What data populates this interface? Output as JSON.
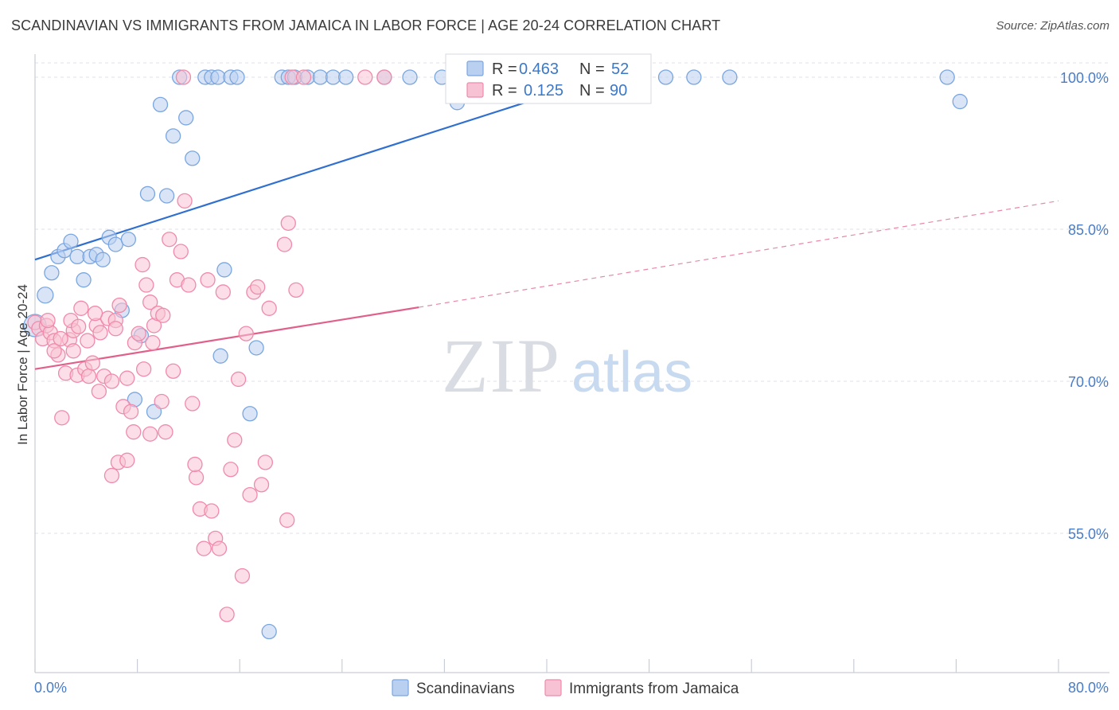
{
  "title": "SCANDINAVIAN VS IMMIGRANTS FROM JAMAICA IN LABOR FORCE | AGE 20-24 CORRELATION CHART",
  "source": "Source: ZipAtlas.com",
  "watermark": {
    "zip": "ZIP",
    "atlas": "atlas"
  },
  "colors": {
    "blue": "#7aa6e0",
    "blue_fill": "#b9d0f0",
    "blue_line": "#2f6fcf",
    "pink": "#f08aab",
    "pink_fill": "#f7c3d4",
    "pink_line": "#e0608a",
    "tick_text": "#4a7cc6",
    "grid": "#dde2ea"
  },
  "legend": {
    "rows": [
      {
        "r_label": "R =",
        "r_value": "0.463",
        "n_label": "N =",
        "n_value": "52"
      },
      {
        "r_label": "R =",
        "r_value": "0.125",
        "n_label": "N =",
        "n_value": "90"
      }
    ]
  },
  "bottom_legend": [
    "Scandinavians",
    "Immigrants from Jamaica"
  ],
  "chart_data": {
    "type": "scatter",
    "title": "SCANDINAVIAN VS IMMIGRANTS FROM JAMAICA IN LABOR FORCE | AGE 20-24 CORRELATION CHART",
    "xlabel": "",
    "ylabel": "In Labor Force | Age 20-24",
    "xlim": [
      0,
      80
    ],
    "ylim": [
      41,
      102
    ],
    "x_tick_labels": [
      "0.0%",
      "80.0%"
    ],
    "y_ticks": [
      55,
      70,
      85,
      100
    ],
    "y_tick_labels": [
      "55.0%",
      "70.0%",
      "85.0%",
      "100.0%"
    ],
    "series": [
      {
        "name": "Scandinavians",
        "color": "blue",
        "R": 0.463,
        "N": 52,
        "trend": {
          "x": [
            0,
            44.5
          ],
          "y": [
            82.0,
            100.0
          ],
          "dashed_extension": false
        },
        "points": [
          [
            0.0,
            75.5
          ],
          [
            0.8,
            78.5
          ],
          [
            1.3,
            80.7
          ],
          [
            1.8,
            82.3
          ],
          [
            2.3,
            82.9
          ],
          [
            2.8,
            83.8
          ],
          [
            3.3,
            82.3
          ],
          [
            3.8,
            80.0
          ],
          [
            4.3,
            82.3
          ],
          [
            4.8,
            82.5
          ],
          [
            5.3,
            82.0
          ],
          [
            5.8,
            84.2
          ],
          [
            6.3,
            83.5
          ],
          [
            6.8,
            77.0
          ],
          [
            7.3,
            84.0
          ],
          [
            7.8,
            68.2
          ],
          [
            8.3,
            74.5
          ],
          [
            8.8,
            88.5
          ],
          [
            9.3,
            67.0
          ],
          [
            9.8,
            97.3
          ],
          [
            10.3,
            88.3
          ],
          [
            10.8,
            94.2
          ],
          [
            11.8,
            96.0
          ],
          [
            12.3,
            92.0
          ],
          [
            11.3,
            100.0
          ],
          [
            13.3,
            100.0
          ],
          [
            13.8,
            100.0
          ],
          [
            14.3,
            100.0
          ],
          [
            15.3,
            100.0
          ],
          [
            15.8,
            100.0
          ],
          [
            19.3,
            100.0
          ],
          [
            19.8,
            100.0
          ],
          [
            20.3,
            100.0
          ],
          [
            21.3,
            100.0
          ],
          [
            22.3,
            100.0
          ],
          [
            23.3,
            100.0
          ],
          [
            24.3,
            100.0
          ],
          [
            27.3,
            100.0
          ],
          [
            29.3,
            100.0
          ],
          [
            31.8,
            100.0
          ],
          [
            33.0,
            97.5
          ],
          [
            35.3,
            100.0
          ],
          [
            49.3,
            100.0
          ],
          [
            51.5,
            100.0
          ],
          [
            54.3,
            100.0
          ],
          [
            71.3,
            100.0
          ],
          [
            72.3,
            97.6
          ],
          [
            14.5,
            72.5
          ],
          [
            14.8,
            81.0
          ],
          [
            17.3,
            73.3
          ],
          [
            16.8,
            66.8
          ],
          [
            18.3,
            45.3
          ]
        ]
      },
      {
        "name": "Immigrants from Jamaica",
        "color": "pink",
        "R": 0.125,
        "N": 90,
        "trend": {
          "x": [
            0,
            30.0
          ],
          "y": [
            71.2,
            77.3
          ],
          "dashed_to": [
            80,
            87.8
          ]
        },
        "points": [
          [
            0.0,
            75.8
          ],
          [
            0.3,
            75.2
          ],
          [
            0.6,
            74.2
          ],
          [
            0.9,
            75.5
          ],
          [
            1.2,
            74.8
          ],
          [
            1.5,
            74.0
          ],
          [
            1.8,
            72.6
          ],
          [
            1.5,
            73.0
          ],
          [
            2.1,
            66.4
          ],
          [
            2.4,
            70.8
          ],
          [
            2.7,
            74.1
          ],
          [
            3.0,
            75.0
          ],
          [
            3.3,
            70.6
          ],
          [
            2.8,
            76.0
          ],
          [
            3.6,
            77.2
          ],
          [
            3.9,
            71.2
          ],
          [
            4.2,
            70.5
          ],
          [
            4.5,
            71.8
          ],
          [
            4.8,
            75.5
          ],
          [
            5.1,
            74.8
          ],
          [
            5.4,
            70.5
          ],
          [
            5.7,
            76.2
          ],
          [
            6.0,
            70.0
          ],
          [
            6.3,
            76.0
          ],
          [
            6.6,
            77.5
          ],
          [
            6.9,
            67.5
          ],
          [
            7.2,
            70.3
          ],
          [
            7.5,
            67.0
          ],
          [
            7.8,
            73.8
          ],
          [
            8.1,
            74.7
          ],
          [
            8.4,
            81.5
          ],
          [
            8.7,
            79.5
          ],
          [
            9.0,
            77.8
          ],
          [
            9.3,
            75.5
          ],
          [
            9.6,
            76.7
          ],
          [
            9.9,
            68.0
          ],
          [
            10.2,
            65.0
          ],
          [
            10.5,
            84.0
          ],
          [
            10.8,
            71.0
          ],
          [
            11.1,
            80.0
          ],
          [
            11.4,
            82.8
          ],
          [
            11.7,
            87.8
          ],
          [
            12.0,
            79.5
          ],
          [
            12.3,
            67.8
          ],
          [
            12.6,
            60.5
          ],
          [
            12.9,
            57.4
          ],
          [
            13.2,
            53.5
          ],
          [
            13.5,
            80.0
          ],
          [
            13.8,
            57.2
          ],
          [
            14.1,
            54.5
          ],
          [
            14.4,
            53.5
          ],
          [
            14.7,
            78.8
          ],
          [
            15.0,
            47.0
          ],
          [
            15.3,
            61.3
          ],
          [
            15.6,
            64.2
          ],
          [
            15.9,
            70.2
          ],
          [
            16.2,
            50.8
          ],
          [
            16.5,
            74.7
          ],
          [
            16.8,
            58.8
          ],
          [
            17.1,
            78.8
          ],
          [
            17.4,
            79.3
          ],
          [
            17.7,
            59.8
          ],
          [
            18.0,
            62.0
          ],
          [
            18.3,
            77.2
          ],
          [
            6.5,
            62.0
          ],
          [
            6.0,
            60.7
          ],
          [
            7.2,
            62.2
          ],
          [
            9.0,
            64.8
          ],
          [
            11.6,
            100.0
          ],
          [
            20.1,
            100.0
          ],
          [
            21.0,
            100.0
          ],
          [
            25.8,
            100.0
          ],
          [
            27.3,
            100.0
          ],
          [
            19.5,
            83.5
          ],
          [
            19.8,
            85.6
          ],
          [
            20.4,
            79.0
          ],
          [
            19.7,
            56.3
          ],
          [
            5.0,
            69.0
          ],
          [
            3.4,
            75.4
          ],
          [
            4.1,
            74.0
          ],
          [
            8.5,
            71.2
          ],
          [
            10.0,
            76.5
          ],
          [
            1.0,
            76.0
          ],
          [
            2.0,
            74.2
          ],
          [
            4.7,
            76.7
          ],
          [
            9.2,
            73.8
          ],
          [
            12.5,
            61.8
          ],
          [
            6.3,
            75.2
          ],
          [
            7.7,
            65.0
          ],
          [
            3.0,
            73.0
          ]
        ]
      }
    ]
  }
}
